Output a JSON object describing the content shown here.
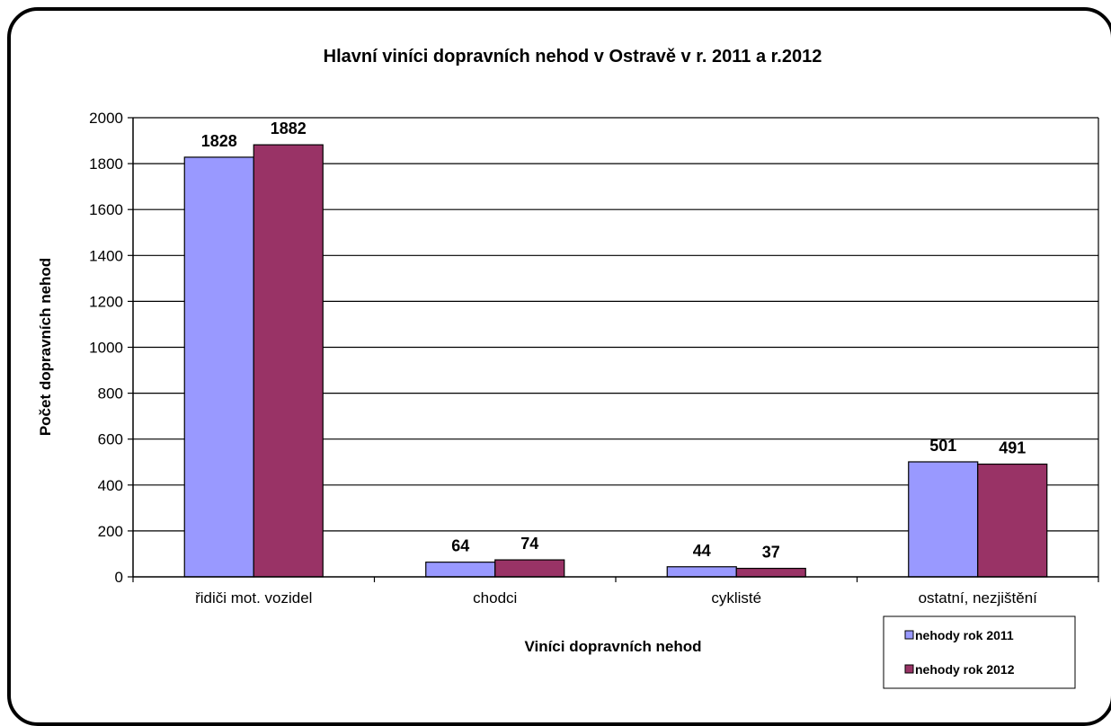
{
  "chart_data": {
    "type": "bar",
    "title": "Hlavní viníci dopravních nehod v Ostravě  v r. 2011 a r.2012",
    "xlabel": "Viníci dopravních nehod",
    "ylabel": "Počet dopravních nehod",
    "categories": [
      "řidiči mot. vozidel",
      "chodci",
      "cyklisté",
      "ostatní, nezjištění"
    ],
    "series": [
      {
        "name": "nehody rok 2011",
        "values": [
          1828,
          64,
          44,
          501
        ],
        "color": "#9999ff"
      },
      {
        "name": "nehody rok 2012",
        "values": [
          1882,
          74,
          37,
          491
        ],
        "color": "#993366"
      }
    ],
    "ylim": [
      0,
      2000
    ],
    "yticks": [
      0,
      200,
      400,
      600,
      800,
      1000,
      1200,
      1400,
      1600,
      1800,
      2000
    ],
    "grid": true,
    "legend_position": "bottom-right"
  }
}
